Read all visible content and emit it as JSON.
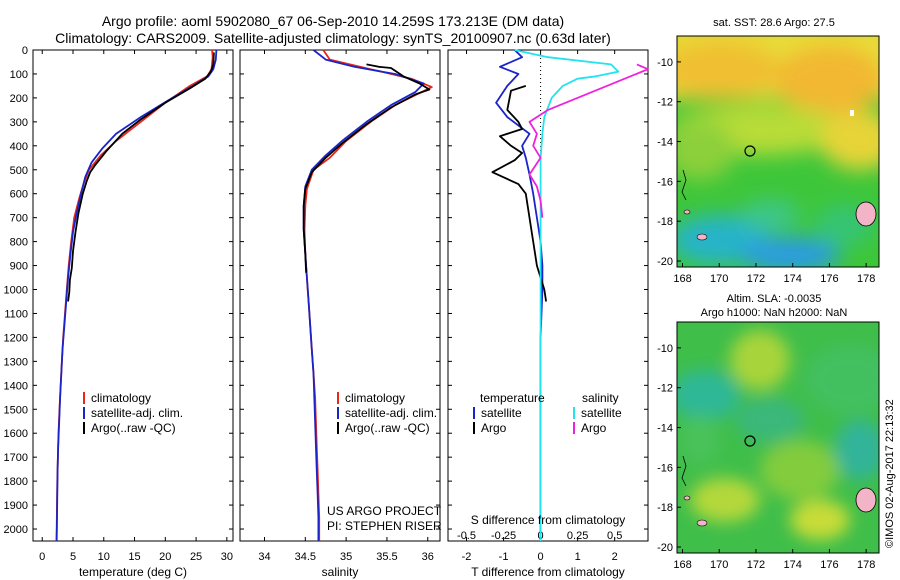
{
  "header": {
    "line1": "Argo profile: aoml 5902080_67 06-Sep-2010 14.259S 173.213E (DM data)",
    "line2": "Climatology: CARS2009. Satellite-adjusted climatology: synTS_20100907.nc (0.63d later)"
  },
  "colors": {
    "climatology": "#e8261a",
    "satellite": "#1a24c8",
    "argo": "#000000",
    "sal_satellite": "#22e4ee",
    "sal_argo": "#ee22dd"
  },
  "chart_data": [
    {
      "type": "line",
      "name": "temperature-profile",
      "xlabel": "temperature (deg C)",
      "xlim": [
        -1.5,
        31
      ],
      "xticks": [
        "0",
        "5",
        "10",
        "15",
        "20",
        "25",
        "30"
      ],
      "xtick_values": [
        0,
        5,
        10,
        15,
        20,
        25,
        30
      ],
      "ylim": [
        2050,
        0
      ],
      "yticks": [
        "0",
        "100",
        "200",
        "300",
        "400",
        "500",
        "600",
        "700",
        "800",
        "900",
        "1000",
        "1100",
        "1200",
        "1300",
        "1400",
        "1500",
        "1600",
        "1700",
        "1800",
        "1900",
        "2000"
      ],
      "ytick_values": [
        0,
        100,
        200,
        300,
        400,
        500,
        600,
        700,
        800,
        900,
        1000,
        1100,
        1200,
        1300,
        1400,
        1500,
        1600,
        1700,
        1800,
        1900,
        2000
      ],
      "legend": [
        "climatology",
        "satellite-adj. clim.",
        "Argo(..raw -QC)"
      ],
      "series": [
        {
          "name": "climatology",
          "color_key": "climatology",
          "points": [
            [
              27.6,
              0
            ],
            [
              27.7,
              30
            ],
            [
              27.5,
              80
            ],
            [
              26.8,
              110
            ],
            [
              24,
              150
            ],
            [
              20,
              220
            ],
            [
              16,
              300
            ],
            [
              12,
              380
            ],
            [
              9.5,
              440
            ],
            [
              7.6,
              500
            ],
            [
              6.7,
              560
            ],
            [
              6,
              620
            ],
            [
              5.2,
              700
            ],
            [
              4.7,
              800
            ],
            [
              4.3,
              900
            ],
            [
              4,
              1000
            ],
            [
              3.7,
              1100
            ],
            [
              3.4,
              1200
            ],
            [
              3.2,
              1300
            ],
            [
              3,
              1400
            ],
            [
              2.8,
              1500
            ],
            [
              2.65,
              1600
            ],
            [
              2.55,
              1700
            ],
            [
              2.45,
              1800
            ],
            [
              2.4,
              1900
            ],
            [
              2.35,
              2000
            ],
            [
              2.3,
              2050
            ]
          ]
        },
        {
          "name": "satellite-adj. clim.",
          "color_key": "satellite",
          "points": [
            [
              28.3,
              0
            ],
            [
              28.2,
              40
            ],
            [
              27.8,
              80
            ],
            [
              27,
              110
            ],
            [
              24.5,
              150
            ],
            [
              20.5,
              210
            ],
            [
              16,
              280
            ],
            [
              12,
              350
            ],
            [
              9.8,
              410
            ],
            [
              8,
              470
            ],
            [
              7,
              530
            ],
            [
              6.3,
              600
            ],
            [
              5.6,
              680
            ],
            [
              5,
              760
            ],
            [
              4.6,
              850
            ],
            [
              4.2,
              950
            ],
            [
              3.9,
              1050
            ],
            [
              3.6,
              1150
            ],
            [
              3.3,
              1250
            ],
            [
              3.1,
              1350
            ],
            [
              2.9,
              1450
            ],
            [
              2.75,
              1550
            ],
            [
              2.6,
              1650
            ],
            [
              2.5,
              1750
            ],
            [
              2.45,
              1850
            ],
            [
              2.4,
              1950
            ],
            [
              2.35,
              2050
            ]
          ]
        },
        {
          "name": "Argo(..raw -QC)",
          "color_key": "argo",
          "points": [
            [
              27.9,
              10
            ],
            [
              27.8,
              60
            ],
            [
              27.4,
              90
            ],
            [
              26.5,
              120
            ],
            [
              24,
              160
            ],
            [
              20,
              220
            ],
            [
              16,
              290
            ],
            [
              13,
              350
            ],
            [
              10.5,
              420
            ],
            [
              8.6,
              480
            ],
            [
              7.8,
              510
            ],
            [
              7.2,
              550
            ],
            [
              6.6,
              600
            ],
            [
              5.9,
              680
            ],
            [
              5.4,
              760
            ],
            [
              5,
              840
            ],
            [
              4.8,
              910
            ],
            [
              4.5,
              960
            ],
            [
              4.4,
              1010
            ],
            [
              4.2,
              1050
            ]
          ]
        }
      ]
    },
    {
      "type": "line",
      "name": "salinity-profile",
      "xlabel": "salinity",
      "xlim": [
        33.7,
        36.15
      ],
      "xticks": [
        "34",
        "34.5",
        "35",
        "35.5",
        "36"
      ],
      "xtick_values": [
        34,
        34.5,
        35,
        35.5,
        36
      ],
      "ylim": [
        2050,
        0
      ],
      "legend": [
        "climatology",
        "satellite-adj. clim.",
        "Argo(..raw -QC)"
      ],
      "annotation": [
        "US ARGO PROJECT",
        "PI: STEPHEN RISER"
      ],
      "series": [
        {
          "name": "climatology",
          "color_key": "climatology",
          "points": [
            [
              34.72,
              0
            ],
            [
              34.8,
              40
            ],
            [
              35.3,
              80
            ],
            [
              35.8,
              120
            ],
            [
              36.05,
              155
            ],
            [
              35.9,
              180
            ],
            [
              35.6,
              230
            ],
            [
              35.3,
              300
            ],
            [
              35,
              380
            ],
            [
              34.8,
              450
            ],
            [
              34.6,
              500
            ],
            [
              34.52,
              580
            ],
            [
              34.5,
              650
            ],
            [
              34.49,
              750
            ],
            [
              34.5,
              850
            ],
            [
              34.52,
              950
            ],
            [
              34.54,
              1050
            ],
            [
              34.56,
              1150
            ],
            [
              34.58,
              1250
            ],
            [
              34.6,
              1350
            ],
            [
              34.62,
              1450
            ],
            [
              34.63,
              1550
            ],
            [
              34.64,
              1650
            ],
            [
              34.65,
              1750
            ],
            [
              34.66,
              1850
            ],
            [
              34.67,
              1950
            ],
            [
              34.67,
              2050
            ]
          ]
        },
        {
          "name": "satellite-adj. clim.",
          "color_key": "satellite",
          "points": [
            [
              34.6,
              0
            ],
            [
              34.75,
              40
            ],
            [
              35.1,
              70
            ],
            [
              35.6,
              100
            ],
            [
              35.95,
              140
            ],
            [
              35.85,
              175
            ],
            [
              35.55,
              230
            ],
            [
              35.25,
              300
            ],
            [
              34.95,
              380
            ],
            [
              34.75,
              440
            ],
            [
              34.58,
              500
            ],
            [
              34.5,
              570
            ],
            [
              34.48,
              650
            ],
            [
              34.48,
              750
            ],
            [
              34.5,
              850
            ],
            [
              34.52,
              950
            ],
            [
              34.54,
              1050
            ],
            [
              34.56,
              1150
            ],
            [
              34.58,
              1250
            ],
            [
              34.6,
              1350
            ],
            [
              34.61,
              1450
            ],
            [
              34.62,
              1550
            ],
            [
              34.63,
              1650
            ],
            [
              34.64,
              1750
            ],
            [
              34.65,
              1850
            ],
            [
              34.66,
              1950
            ],
            [
              34.66,
              2050
            ]
          ]
        },
        {
          "name": "Argo(..raw -QC)",
          "color_key": "argo",
          "points": [
            [
              35.25,
              60
            ],
            [
              35.4,
              70
            ],
            [
              35.55,
              75
            ],
            [
              35.7,
              110
            ],
            [
              35.9,
              140
            ],
            [
              36.02,
              165
            ],
            [
              35.85,
              185
            ],
            [
              35.55,
              240
            ],
            [
              35.25,
              310
            ],
            [
              34.95,
              390
            ],
            [
              34.75,
              450
            ],
            [
              34.58,
              510
            ],
            [
              34.5,
              580
            ],
            [
              34.48,
              650
            ],
            [
              34.48,
              750
            ],
            [
              34.5,
              850
            ],
            [
              34.51,
              930
            ]
          ]
        }
      ]
    },
    {
      "type": "line",
      "name": "difference-profile",
      "xlabel": "T difference from climatology",
      "xlabel_top": "S difference from climatology",
      "xlim": [
        -2.5,
        2.9
      ],
      "xticks": [
        "-2",
        "-1",
        "0",
        "1",
        "2"
      ],
      "xtick_values": [
        -2,
        -1,
        0,
        1,
        2
      ],
      "xticks_top": [
        "-0.5",
        "-0.25",
        "0",
        "0.25",
        "0.5"
      ],
      "ylim": [
        2050,
        0
      ],
      "legend_temperature": {
        "title": "temperature",
        "items": [
          "satellite",
          "Argo"
        ]
      },
      "legend_salinity": {
        "title": "salinity",
        "items": [
          "satellite",
          "Argo"
        ]
      },
      "series": [
        {
          "name": "temperature satellite",
          "color_key": "satellite",
          "points": [
            [
              -0.7,
              0
            ],
            [
              -0.5,
              30
            ],
            [
              -1.1,
              70
            ],
            [
              -0.6,
              100
            ],
            [
              -0.9,
              150
            ],
            [
              -1.2,
              220
            ],
            [
              -0.9,
              280
            ],
            [
              -0.3,
              350
            ],
            [
              -0.5,
              400
            ],
            [
              -0.4,
              450
            ],
            [
              -0.3,
              520
            ],
            [
              -0.2,
              600
            ],
            [
              -0.1,
              700
            ],
            [
              0,
              800
            ],
            [
              0.05,
              900
            ],
            [
              0.05,
              1000
            ],
            [
              0,
              1200
            ],
            [
              0,
              1500
            ],
            [
              0,
              1800
            ],
            [
              0,
              2050
            ]
          ]
        },
        {
          "name": "temperature Argo",
          "color_key": "argo",
          "points": [
            [
              -0.4,
              150
            ],
            [
              -0.8,
              170
            ],
            [
              -0.9,
              250
            ],
            [
              -0.6,
              300
            ],
            [
              -0.5,
              330
            ],
            [
              -1.1,
              360
            ],
            [
              -0.8,
              400
            ],
            [
              -0.5,
              430
            ],
            [
              -0.7,
              460
            ],
            [
              -1.3,
              510
            ],
            [
              -0.6,
              560
            ],
            [
              -0.4,
              600
            ],
            [
              -0.3,
              700
            ],
            [
              -0.2,
              800
            ],
            [
              -0.1,
              900
            ],
            [
              0.1,
              1000
            ],
            [
              0.15,
              1050
            ]
          ]
        },
        {
          "name": "salinity satellite",
          "color_key": "sal_satellite",
          "points": [
            [
              -0.7,
              0
            ],
            [
              0.2,
              30
            ],
            [
              1.9,
              60
            ],
            [
              2.1,
              90
            ],
            [
              1.5,
              110
            ],
            [
              1,
              120
            ],
            [
              0.6,
              150
            ],
            [
              0.3,
              200
            ],
            [
              0.1,
              280
            ],
            [
              0.05,
              350
            ],
            [
              0,
              450
            ],
            [
              0,
              600
            ],
            [
              0,
              800
            ],
            [
              0,
              1000
            ],
            [
              0,
              1500
            ],
            [
              0,
              2050
            ]
          ]
        },
        {
          "name": "salinity Argo",
          "color_key": "sal_argo",
          "points": [
            [
              2.6,
              60
            ],
            [
              2.9,
              80
            ],
            [
              0.2,
              250
            ],
            [
              -0.3,
              300
            ],
            [
              -0.1,
              350
            ],
            [
              -0.2,
              400
            ],
            [
              0,
              450
            ],
            [
              -0.3,
              520
            ],
            [
              -0.1,
              570
            ],
            [
              0,
              630
            ],
            [
              0.05,
              700
            ]
          ]
        }
      ]
    }
  ],
  "maps": {
    "top": {
      "title": "sat. SST: 28.6 Argo: 27.5",
      "yticks": [
        "-10",
        "-12",
        "-14",
        "-16",
        "-18",
        "-20"
      ],
      "xticks": [
        "168",
        "170",
        "172",
        "174",
        "176",
        "178"
      ]
    },
    "bottom": {
      "title_line1": "Altim. SLA: -0.0035",
      "title_line2": "Argo h1000: NaN h2000: NaN",
      "yticks": [
        "-10",
        "-12",
        "-14",
        "-16",
        "-18",
        "-20"
      ],
      "xticks": [
        "168",
        "170",
        "172",
        "174",
        "176",
        "178"
      ]
    },
    "credit": "©IMOS 02-Aug-2017 22:13:32"
  }
}
